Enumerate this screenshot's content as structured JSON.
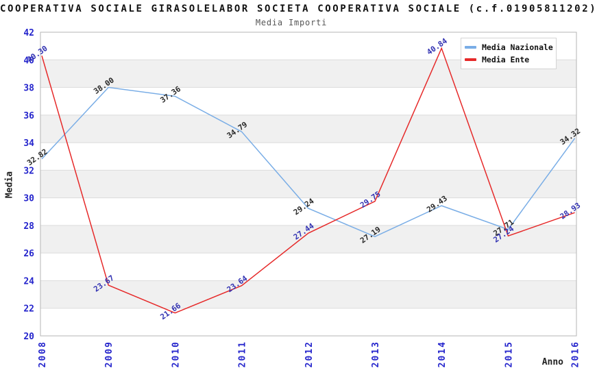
{
  "header": {
    "title": "COOPERATIVA SOCIALE GIRASOLELABOR SOCIETA COOPERATIVA SOCIALE (c.f.01905811202)",
    "subtitle": "Media Importi"
  },
  "chart_data": {
    "type": "line",
    "x": [
      2008,
      2009,
      2010,
      2011,
      2012,
      2013,
      2014,
      2015,
      2016
    ],
    "xlabel": "Anno",
    "ylabel": "Media",
    "ylim": [
      20,
      42
    ],
    "ytick_step": 2,
    "grid": "horizontal-bands-alternating",
    "band_color": "#f0f0f0",
    "grid_line_color": "#dcdcdc",
    "border_color": "#b6b6b6",
    "tick_color": "#2424cc",
    "legend_position": "top-right",
    "series": [
      {
        "name": "Media Nazionale",
        "color": "#79ade6",
        "label_color": "#2a2a2a",
        "values": [
          32.82,
          38.0,
          37.36,
          34.79,
          29.24,
          27.19,
          29.43,
          27.71,
          34.32
        ]
      },
      {
        "name": "Media Ente",
        "color": "#e62929",
        "label_color": "#3232b2",
        "values": [
          40.3,
          23.67,
          21.66,
          23.64,
          27.44,
          29.75,
          40.84,
          27.24,
          28.93
        ]
      }
    ]
  }
}
